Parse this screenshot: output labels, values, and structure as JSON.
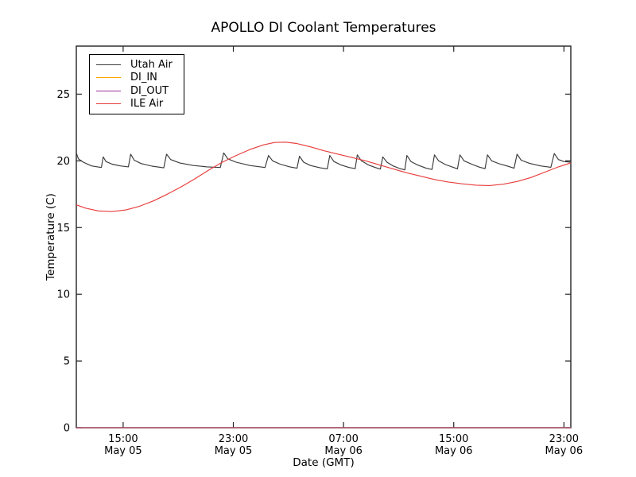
{
  "window": {
    "background": "#ffffff"
  },
  "chart_data": {
    "type": "line",
    "title": "APOLLO DI Coolant Temperatures",
    "xlabel": "Date (GMT)",
    "ylabel": "Temperature (C)",
    "x_unit": "hours since May 05 00:00 GMT",
    "xlim": [
      11.6,
      47.5
    ],
    "ylim": [
      0,
      28.6
    ],
    "grid": false,
    "legend_position": "upper-left",
    "axis_color": "#222222",
    "yticks": [
      0,
      5,
      10,
      15,
      20,
      25
    ],
    "xticks": [
      {
        "t": 15,
        "time": "15:00",
        "date": "May 05"
      },
      {
        "t": 23,
        "time": "23:00",
        "date": "May 05"
      },
      {
        "t": 31,
        "time": "07:00",
        "date": "May 06"
      },
      {
        "t": 39,
        "time": "15:00",
        "date": "May 06"
      },
      {
        "t": 47,
        "time": "23:00",
        "date": "May 06"
      }
    ],
    "series": [
      {
        "name": "Utah Air",
        "color": "#3a3a3a",
        "points": [
          [
            11.6,
            20.6
          ],
          [
            11.75,
            20.15
          ],
          [
            12.1,
            19.9
          ],
          [
            12.7,
            19.62
          ],
          [
            13.42,
            19.5
          ],
          [
            13.55,
            20.3
          ],
          [
            13.75,
            19.95
          ],
          [
            14.2,
            19.75
          ],
          [
            14.8,
            19.62
          ],
          [
            15.38,
            19.55
          ],
          [
            15.55,
            20.5
          ],
          [
            15.8,
            20.05
          ],
          [
            16.3,
            19.8
          ],
          [
            17.1,
            19.6
          ],
          [
            17.95,
            19.48
          ],
          [
            18.15,
            20.5
          ],
          [
            18.45,
            20.1
          ],
          [
            19.1,
            19.85
          ],
          [
            20.1,
            19.65
          ],
          [
            21.1,
            19.55
          ],
          [
            22.05,
            19.5
          ],
          [
            22.3,
            20.6
          ],
          [
            22.6,
            20.15
          ],
          [
            23.2,
            19.9
          ],
          [
            24.2,
            19.65
          ],
          [
            25.3,
            19.5
          ],
          [
            25.55,
            20.4
          ],
          [
            25.85,
            20.0
          ],
          [
            26.4,
            19.75
          ],
          [
            27.1,
            19.55
          ],
          [
            27.62,
            19.45
          ],
          [
            27.8,
            20.35
          ],
          [
            28.1,
            19.9
          ],
          [
            28.6,
            19.65
          ],
          [
            29.3,
            19.48
          ],
          [
            29.82,
            19.4
          ],
          [
            30.0,
            20.4
          ],
          [
            30.3,
            19.95
          ],
          [
            30.8,
            19.7
          ],
          [
            31.4,
            19.5
          ],
          [
            31.85,
            19.42
          ],
          [
            32.0,
            20.45
          ],
          [
            32.3,
            20.0
          ],
          [
            32.8,
            19.7
          ],
          [
            33.3,
            19.5
          ],
          [
            33.67,
            19.38
          ],
          [
            33.85,
            20.3
          ],
          [
            34.15,
            19.9
          ],
          [
            34.6,
            19.62
          ],
          [
            35.1,
            19.42
          ],
          [
            35.45,
            19.32
          ],
          [
            35.6,
            20.4
          ],
          [
            35.9,
            19.95
          ],
          [
            36.4,
            19.68
          ],
          [
            37.0,
            19.45
          ],
          [
            37.42,
            19.35
          ],
          [
            37.6,
            20.45
          ],
          [
            37.9,
            20.0
          ],
          [
            38.4,
            19.72
          ],
          [
            39.0,
            19.5
          ],
          [
            39.27,
            19.4
          ],
          [
            39.45,
            20.45
          ],
          [
            39.75,
            20.0
          ],
          [
            40.3,
            19.75
          ],
          [
            40.9,
            19.52
          ],
          [
            41.27,
            19.42
          ],
          [
            41.45,
            20.45
          ],
          [
            41.75,
            20.0
          ],
          [
            42.3,
            19.78
          ],
          [
            43.0,
            19.58
          ],
          [
            43.38,
            19.45
          ],
          [
            43.6,
            20.5
          ],
          [
            43.9,
            20.05
          ],
          [
            44.5,
            19.82
          ],
          [
            45.3,
            19.62
          ],
          [
            46.05,
            19.52
          ],
          [
            46.3,
            20.55
          ],
          [
            46.6,
            20.1
          ],
          [
            47.0,
            19.95
          ],
          [
            47.5,
            19.9
          ]
        ]
      },
      {
        "name": "DI_IN",
        "color": "#ffa500",
        "points": [
          [
            11.6,
            0
          ],
          [
            47.5,
            0
          ]
        ]
      },
      {
        "name": "DI_OUT",
        "color": "#993399",
        "points": [
          [
            11.6,
            0
          ],
          [
            47.5,
            0
          ]
        ]
      },
      {
        "name": "ILE Air",
        "color": "#e83c3c",
        "points": [
          [
            11.6,
            16.7
          ],
          [
            12.3,
            16.45
          ],
          [
            13.2,
            16.25
          ],
          [
            14.2,
            16.2
          ],
          [
            15.2,
            16.32
          ],
          [
            16.2,
            16.6
          ],
          [
            17.2,
            17.0
          ],
          [
            18.2,
            17.5
          ],
          [
            19.2,
            18.05
          ],
          [
            20.2,
            18.65
          ],
          [
            21.2,
            19.3
          ],
          [
            22.2,
            19.9
          ],
          [
            23.2,
            20.4
          ],
          [
            24.2,
            20.85
          ],
          [
            25.2,
            21.2
          ],
          [
            26.0,
            21.38
          ],
          [
            26.8,
            21.4
          ],
          [
            27.6,
            21.3
          ],
          [
            28.6,
            21.05
          ],
          [
            29.6,
            20.75
          ],
          [
            30.6,
            20.5
          ],
          [
            31.6,
            20.25
          ],
          [
            32.6,
            20.0
          ],
          [
            33.6,
            19.7
          ],
          [
            34.6,
            19.4
          ],
          [
            35.6,
            19.1
          ],
          [
            36.6,
            18.85
          ],
          [
            37.6,
            18.6
          ],
          [
            38.6,
            18.42
          ],
          [
            39.6,
            18.28
          ],
          [
            40.6,
            18.18
          ],
          [
            41.6,
            18.15
          ],
          [
            42.6,
            18.25
          ],
          [
            43.6,
            18.45
          ],
          [
            44.6,
            18.75
          ],
          [
            45.6,
            19.15
          ],
          [
            46.6,
            19.55
          ],
          [
            47.5,
            19.85
          ]
        ]
      }
    ]
  }
}
